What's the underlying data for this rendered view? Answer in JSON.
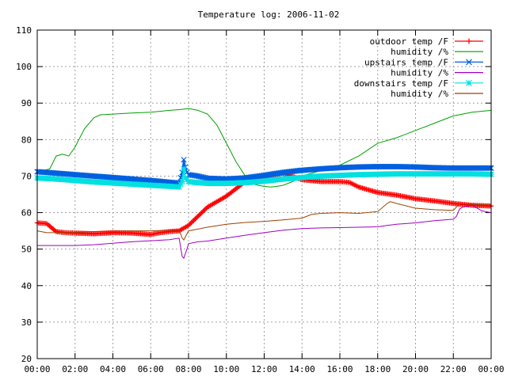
{
  "chart_data": {
    "type": "line",
    "title": "Temperature log: 2006-11-02",
    "xlabel": "",
    "ylabel": "",
    "xlim": [
      "00:00",
      "24:00"
    ],
    "ylim": [
      20,
      110
    ],
    "x_tick_labels": [
      "00:00",
      "02:00",
      "04:00",
      "06:00",
      "08:00",
      "10:00",
      "12:00",
      "14:00",
      "16:00",
      "18:00",
      "20:00",
      "22:00",
      "00:00"
    ],
    "y_tick_labels": [
      "20",
      "30",
      "40",
      "50",
      "60",
      "70",
      "80",
      "90",
      "100",
      "110"
    ],
    "grid": true,
    "legend_position": "top-right",
    "series": [
      {
        "name": "outdoor temp /F",
        "color": "#ff0000",
        "marker": "plus",
        "x": [
          "00:00",
          "00:30",
          "01:00",
          "01:30",
          "02:00",
          "03:00",
          "04:00",
          "05:00",
          "06:00",
          "06:30",
          "07:00",
          "07:30",
          "08:00",
          "08:30",
          "09:00",
          "09:30",
          "10:00",
          "10:30",
          "11:00",
          "11:30",
          "12:00",
          "12:30",
          "13:00",
          "14:00",
          "15:00",
          "16:00",
          "16:30",
          "17:00",
          "18:00",
          "19:00",
          "20:00",
          "21:00",
          "22:00",
          "23:00",
          "24:00"
        ],
        "y": [
          57.2,
          57,
          54.8,
          54.5,
          54.4,
          54.2,
          54.5,
          54.4,
          54,
          54.5,
          54.8,
          55,
          56.5,
          59,
          61.5,
          63,
          64.5,
          66.5,
          68.5,
          69.5,
          69.8,
          70.3,
          70.8,
          69,
          68.5,
          68.5,
          68.3,
          67,
          65.5,
          64.8,
          63.8,
          63.2,
          62.5,
          62,
          61.8
        ]
      },
      {
        "name": "humidity /%",
        "color": "#00a000",
        "x": [
          "00:00",
          "00:20",
          "00:40",
          "01:00",
          "01:20",
          "01:40",
          "02:00",
          "02:30",
          "03:00",
          "03:20",
          "04:00",
          "05:00",
          "06:00",
          "07:00",
          "07:30",
          "08:00",
          "08:30",
          "09:00",
          "09:30",
          "10:00",
          "10:30",
          "11:00",
          "11:20",
          "11:40",
          "12:00",
          "12:20",
          "12:40",
          "13:00",
          "13:30",
          "14:00",
          "15:00",
          "16:00",
          "17:00",
          "18:00",
          "19:00",
          "20:00",
          "21:00",
          "22:00",
          "23:00",
          "24:00"
        ],
        "y": [
          71,
          71.5,
          72,
          75.5,
          76,
          75.5,
          78,
          83,
          86,
          86.8,
          87,
          87.3,
          87.5,
          88,
          88.2,
          88.5,
          88,
          87,
          84,
          79,
          74,
          70,
          68,
          67.5,
          67.2,
          67,
          67.2,
          67.5,
          68.5,
          70,
          71.5,
          73,
          75.5,
          79,
          80.5,
          82.5,
          84.5,
          86.5,
          87.5,
          88
        ]
      },
      {
        "name": "upstairs temp /F",
        "color": "#0060e0",
        "marker": "cross",
        "x": [
          "00:00",
          "01:00",
          "02:00",
          "03:00",
          "04:00",
          "05:00",
          "06:00",
          "07:00",
          "07:30",
          "07:40",
          "07:45",
          "07:50",
          "07:55",
          "08:00",
          "08:30",
          "09:00",
          "10:00",
          "11:00",
          "12:00",
          "13:00",
          "14:00",
          "15:00",
          "16:00",
          "17:00",
          "18:00",
          "19:00",
          "20:00",
          "21:00",
          "22:00",
          "23:00",
          "24:00"
        ],
        "y": [
          71.2,
          70.8,
          70.4,
          70,
          69.6,
          69.2,
          68.8,
          68.3,
          68.1,
          71,
          74.5,
          72.5,
          71,
          70.4,
          70,
          69.4,
          69.2,
          69.5,
          70.2,
          71,
          71.6,
          72,
          72.3,
          72.5,
          72.6,
          72.6,
          72.5,
          72.3,
          72.2,
          72.2,
          72.2
        ]
      },
      {
        "name": "humidity /%",
        "color": "#a000c0",
        "x": [
          "00:00",
          "01:00",
          "02:00",
          "03:00",
          "04:00",
          "05:00",
          "06:00",
          "07:00",
          "07:30",
          "07:40",
          "07:45",
          "07:55",
          "08:00",
          "08:30",
          "09:00",
          "10:00",
          "11:00",
          "12:00",
          "13:00",
          "14:00",
          "15:00",
          "16:00",
          "17:00",
          "18:00",
          "18:30",
          "19:00",
          "20:00",
          "21:00",
          "22:00",
          "22:10",
          "22:20",
          "22:30",
          "23:00",
          "23:30",
          "24:00"
        ],
        "y": [
          51,
          51,
          51,
          51.2,
          51.6,
          52,
          52.3,
          52.6,
          53,
          48,
          47.5,
          50,
          51.5,
          52,
          52.2,
          53,
          53.8,
          54.5,
          55.2,
          55.6,
          55.8,
          55.9,
          56,
          56.1,
          56.5,
          56.8,
          57.2,
          57.8,
          58.2,
          59,
          61,
          61.5,
          62,
          60.5,
          60
        ]
      },
      {
        "name": "downstairs temp /F",
        "color": "#00e0e0",
        "marker": "star",
        "x": [
          "00:00",
          "01:00",
          "02:00",
          "03:00",
          "04:00",
          "05:00",
          "06:00",
          "07:00",
          "07:30",
          "07:40",
          "07:45",
          "07:50",
          "08:00",
          "08:30",
          "09:00",
          "10:00",
          "11:00",
          "12:00",
          "13:00",
          "14:00",
          "15:00",
          "16:00",
          "17:00",
          "18:00",
          "19:00",
          "20:00",
          "21:00",
          "22:00",
          "23:00",
          "24:00"
        ],
        "y": [
          69.5,
          69.2,
          68.8,
          68.4,
          68.1,
          67.8,
          67.5,
          67.2,
          67,
          68.5,
          72,
          69.5,
          68.5,
          68.2,
          68,
          68,
          68.2,
          68.6,
          69.2,
          69.6,
          70,
          70.2,
          70.4,
          70.5,
          70.6,
          70.6,
          70.6,
          70.6,
          70.6,
          70.5
        ]
      },
      {
        "name": "humidity /%",
        "color": "#a04000",
        "x": [
          "00:00",
          "00:30",
          "01:00",
          "02:00",
          "03:00",
          "04:00",
          "05:00",
          "06:00",
          "07:00",
          "07:30",
          "07:40",
          "07:45",
          "08:00",
          "09:00",
          "10:00",
          "11:00",
          "12:00",
          "13:00",
          "14:00",
          "14:30",
          "15:00",
          "16:00",
          "17:00",
          "18:00",
          "18:30",
          "18:40",
          "19:00",
          "20:00",
          "21:00",
          "22:00",
          "22:20",
          "23:00",
          "24:00"
        ],
        "y": [
          55,
          54.5,
          54.5,
          54.6,
          54.8,
          54.9,
          55,
          55,
          55.2,
          55.3,
          53,
          52.5,
          55,
          56,
          56.8,
          57.3,
          57.6,
          58,
          58.5,
          59.5,
          59.8,
          60,
          59.8,
          60.3,
          62.5,
          63,
          62.5,
          61.2,
          60.8,
          60.6,
          62.5,
          62.3,
          62
        ]
      }
    ]
  }
}
